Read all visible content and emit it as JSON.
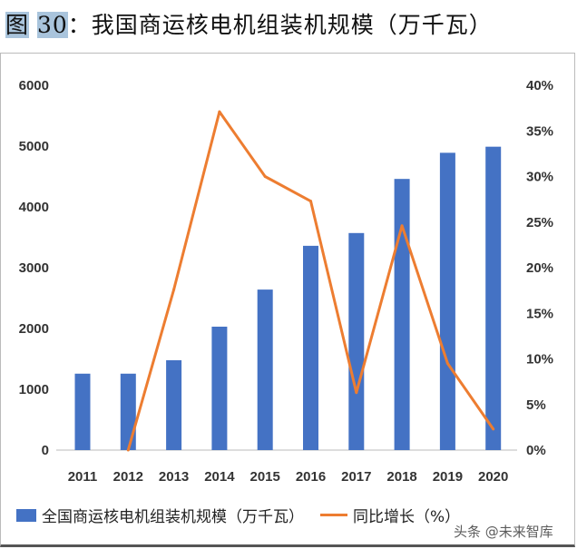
{
  "title": {
    "prefix": "图",
    "number": "30",
    "text": "：我国商运核电机组装机规模（万千瓦）"
  },
  "chart_data": {
    "type": "bar+line",
    "categories": [
      "2011",
      "2012",
      "2013",
      "2014",
      "2015",
      "2016",
      "2017",
      "2018",
      "2019",
      "2020"
    ],
    "series": [
      {
        "name": "全国商运核电机组装机规模（万千瓦）",
        "type": "bar",
        "axis": "left",
        "color": "#4472c4",
        "values": [
          1257,
          1257,
          1478,
          2030,
          2640,
          3360,
          3570,
          4460,
          4890,
          4990
        ]
      },
      {
        "name": "同比增长（%）",
        "type": "line",
        "axis": "right",
        "color": "#ed7d31",
        "values": [
          null,
          0,
          17.6,
          37.1,
          30.0,
          27.3,
          6.3,
          24.6,
          9.5,
          2.3
        ]
      }
    ],
    "ylim_left": [
      0,
      6000
    ],
    "yticks_left": [
      "0",
      "1000",
      "2000",
      "3000",
      "4000",
      "5000",
      "6000"
    ],
    "ylim_right": [
      0,
      40
    ],
    "yticks_right": [
      "0%",
      "5%",
      "10%",
      "15%",
      "20%",
      "25%",
      "30%",
      "35%",
      "40%"
    ],
    "grid": false,
    "legend": "bottom"
  },
  "watermark": "头条 @未来智库"
}
